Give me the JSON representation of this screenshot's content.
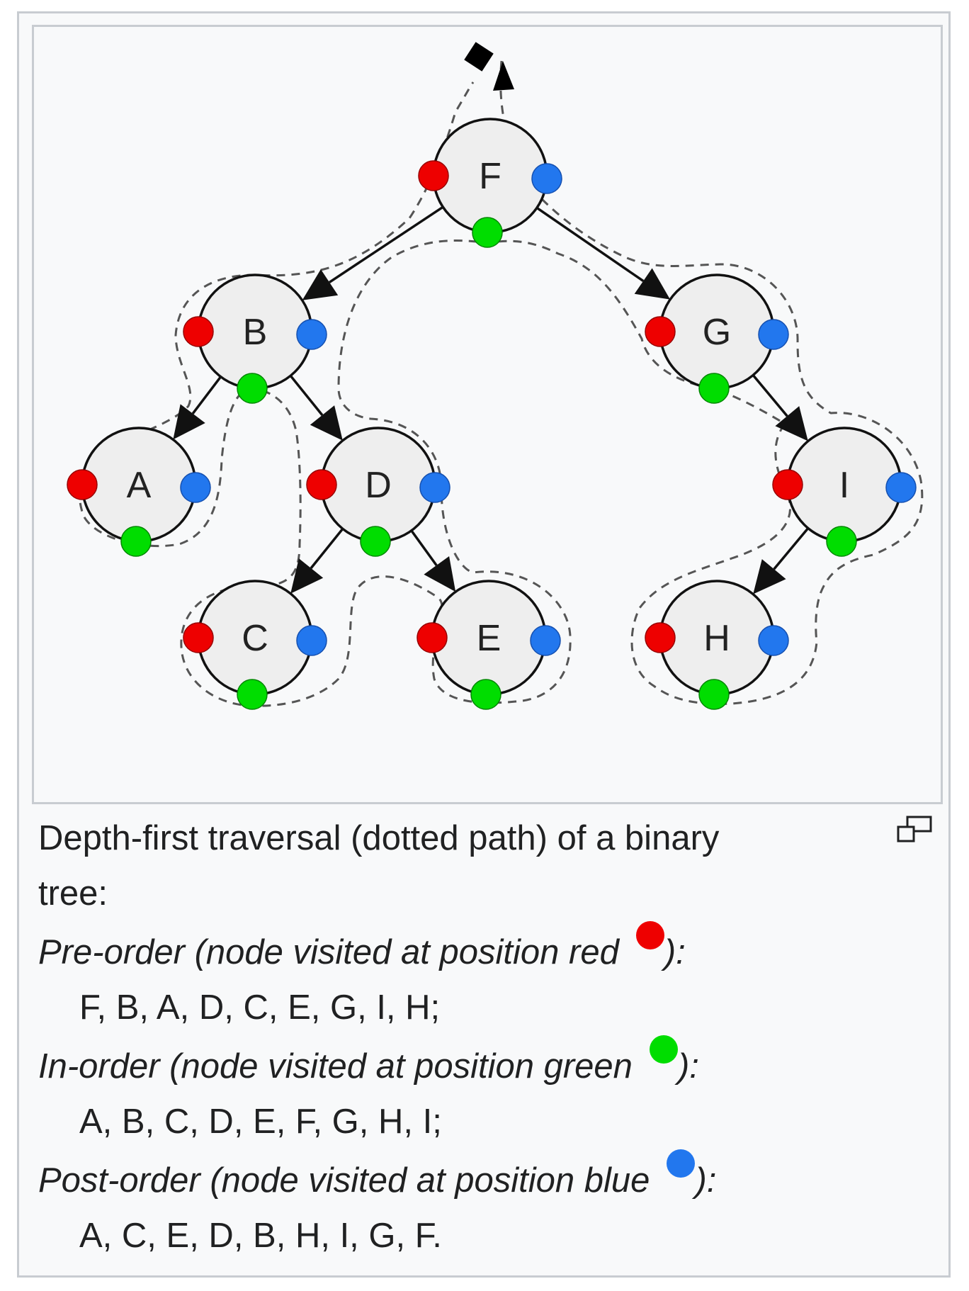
{
  "diagram": {
    "colors": {
      "pre": "#ee0000",
      "in": "#00dd00",
      "post": "#2277ee",
      "node_fill": "#eeeeee",
      "edge": "#111111",
      "path": "#555555"
    },
    "nodes": [
      {
        "id": "F",
        "label": "F"
      },
      {
        "id": "B",
        "label": "B"
      },
      {
        "id": "G",
        "label": "G"
      },
      {
        "id": "A",
        "label": "A"
      },
      {
        "id": "D",
        "label": "D"
      },
      {
        "id": "I",
        "label": "I"
      },
      {
        "id": "C",
        "label": "C"
      },
      {
        "id": "E",
        "label": "E"
      },
      {
        "id": "H",
        "label": "H"
      }
    ],
    "edges": [
      {
        "from": "F",
        "to": "B"
      },
      {
        "from": "F",
        "to": "G"
      },
      {
        "from": "B",
        "to": "A"
      },
      {
        "from": "B",
        "to": "D"
      },
      {
        "from": "D",
        "to": "C"
      },
      {
        "from": "D",
        "to": "E"
      },
      {
        "from": "G",
        "to": "I"
      },
      {
        "from": "I",
        "to": "H"
      }
    ]
  },
  "caption": {
    "intro": "Depth-first traversal (dotted path) of a binary tree:",
    "intro_line1": "Depth-first traversal (dotted path) of a binary",
    "intro_line2": "tree:",
    "preorder_label": "Pre-order (node visited at position red",
    "preorder_close": "):",
    "preorder_sequence": "F, B, A, D, C, E, G, I, H;",
    "inorder_label": "In-order (node visited at position green",
    "inorder_close": "):",
    "inorder_sequence": "A, B, C, D, E, F, G, H, I;",
    "postorder_label": "Post-order (node visited at position blue",
    "postorder_close": "):",
    "postorder_sequence": "A, C, E, D, B, H, I, G, F."
  },
  "enlarge_icon": "magnify-clip-icon"
}
